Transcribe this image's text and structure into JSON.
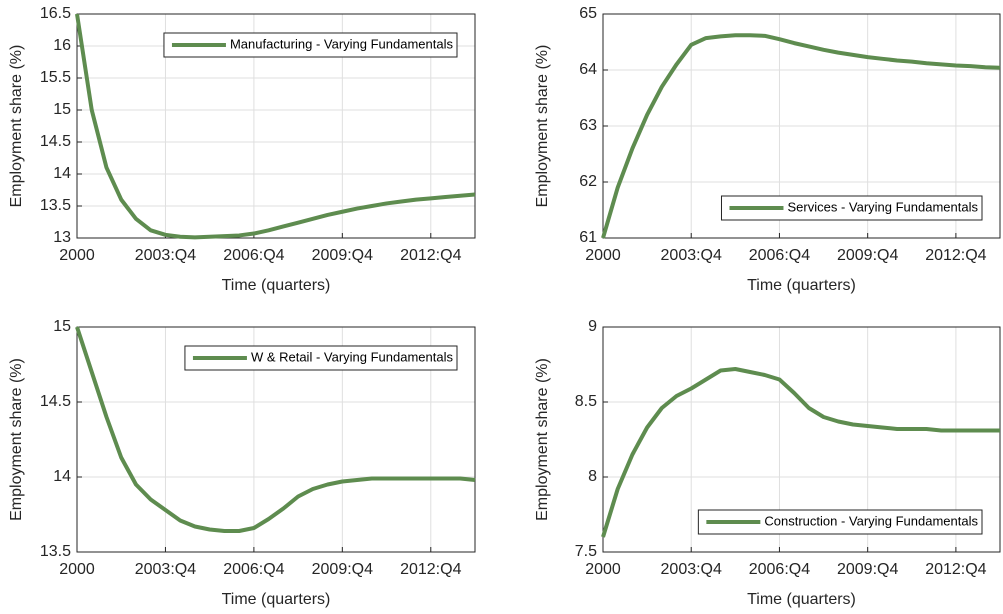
{
  "chart_data": [
    {
      "type": "line",
      "xlabel": "Time (quarters)",
      "ylabel": "Employment share (%)",
      "x": [
        1,
        3,
        5,
        7,
        9,
        11,
        13,
        15,
        17,
        19,
        21,
        23,
        25,
        27,
        29,
        31,
        33,
        35,
        37,
        39,
        41,
        43,
        45,
        47,
        49,
        51,
        53,
        55
      ],
      "series": [
        {
          "name": "Manufacturing - Varying Fundamentals",
          "color": "#5e8c4f",
          "values": [
            16.5,
            15.0,
            14.1,
            13.6,
            13.3,
            13.12,
            13.05,
            13.02,
            13.01,
            13.02,
            13.03,
            13.04,
            13.07,
            13.12,
            13.18,
            13.24,
            13.3,
            13.36,
            13.41,
            13.46,
            13.5,
            13.54,
            13.57,
            13.6,
            13.62,
            13.64,
            13.66,
            13.68
          ]
        }
      ],
      "xlim": [
        1,
        55
      ],
      "xticks": [
        {
          "value": 1,
          "label": "2000"
        },
        {
          "value": 13,
          "label": "2003:Q4"
        },
        {
          "value": 25,
          "label": "2006:Q4"
        },
        {
          "value": 37,
          "label": "2009:Q4"
        },
        {
          "value": 49,
          "label": "2012:Q4"
        }
      ],
      "ylim": [
        13,
        16.5
      ],
      "yticks": [
        13,
        13.5,
        14,
        14.5,
        15,
        15.5,
        16,
        16.5
      ],
      "grid": true,
      "legend_loc": "northeast"
    },
    {
      "type": "line",
      "xlabel": "Time (quarters)",
      "ylabel": "Employment share (%)",
      "x": [
        1,
        3,
        5,
        7,
        9,
        11,
        13,
        15,
        17,
        19,
        21,
        23,
        25,
        27,
        29,
        31,
        33,
        35,
        37,
        39,
        41,
        43,
        45,
        47,
        49,
        51,
        53,
        55
      ],
      "series": [
        {
          "name": "Services - Varying Fundamentals",
          "color": "#5e8c4f",
          "values": [
            61.0,
            61.9,
            62.6,
            63.2,
            63.7,
            64.1,
            64.45,
            64.57,
            64.6,
            64.62,
            64.62,
            64.61,
            64.55,
            64.48,
            64.42,
            64.36,
            64.31,
            64.27,
            64.23,
            64.2,
            64.17,
            64.15,
            64.12,
            64.1,
            64.08,
            64.07,
            64.05,
            64.04
          ]
        }
      ],
      "xlim": [
        1,
        55
      ],
      "xticks": [
        {
          "value": 1,
          "label": "2000"
        },
        {
          "value": 13,
          "label": "2003:Q4"
        },
        {
          "value": 25,
          "label": "2006:Q4"
        },
        {
          "value": 37,
          "label": "2009:Q4"
        },
        {
          "value": 49,
          "label": "2012:Q4"
        }
      ],
      "ylim": [
        61,
        65
      ],
      "yticks": [
        61,
        62,
        63,
        64,
        65
      ],
      "grid": true,
      "legend_loc": "southeast"
    },
    {
      "type": "line",
      "xlabel": "Time (quarters)",
      "ylabel": "Employment share (%)",
      "x": [
        1,
        3,
        5,
        7,
        9,
        11,
        13,
        15,
        17,
        19,
        21,
        23,
        25,
        27,
        29,
        31,
        33,
        35,
        37,
        39,
        41,
        43,
        45,
        47,
        49,
        51,
        53,
        55
      ],
      "series": [
        {
          "name": "W & Retail - Varying Fundamentals",
          "color": "#5e8c4f",
          "values": [
            15.0,
            14.7,
            14.4,
            14.13,
            13.95,
            13.85,
            13.78,
            13.71,
            13.67,
            13.65,
            13.64,
            13.64,
            13.66,
            13.72,
            13.79,
            13.87,
            13.92,
            13.95,
            13.97,
            13.98,
            13.99,
            13.99,
            13.99,
            13.99,
            13.99,
            13.99,
            13.99,
            13.98
          ]
        }
      ],
      "xlim": [
        1,
        55
      ],
      "xticks": [
        {
          "value": 1,
          "label": "2000"
        },
        {
          "value": 13,
          "label": "2003:Q4"
        },
        {
          "value": 25,
          "label": "2006:Q4"
        },
        {
          "value": 37,
          "label": "2009:Q4"
        },
        {
          "value": 49,
          "label": "2012:Q4"
        }
      ],
      "ylim": [
        13.5,
        15
      ],
      "yticks": [
        13.5,
        14,
        14.5,
        15
      ],
      "grid": true,
      "legend_loc": "northeast"
    },
    {
      "type": "line",
      "xlabel": "Time (quarters)",
      "ylabel": "Employment share (%)",
      "x": [
        1,
        3,
        5,
        7,
        9,
        11,
        13,
        15,
        17,
        19,
        21,
        23,
        25,
        27,
        29,
        31,
        33,
        35,
        37,
        39,
        41,
        43,
        45,
        47,
        49,
        51,
        53,
        55
      ],
      "series": [
        {
          "name": "Construction - Varying Fundamentals",
          "color": "#5e8c4f",
          "values": [
            7.6,
            7.92,
            8.15,
            8.33,
            8.46,
            8.54,
            8.59,
            8.65,
            8.71,
            8.72,
            8.7,
            8.68,
            8.65,
            8.56,
            8.46,
            8.4,
            8.37,
            8.35,
            8.34,
            8.33,
            8.32,
            8.32,
            8.32,
            8.31,
            8.31,
            8.31,
            8.31,
            8.31
          ]
        }
      ],
      "xlim": [
        1,
        55
      ],
      "xticks": [
        {
          "value": 1,
          "label": "2000"
        },
        {
          "value": 13,
          "label": "2003:Q4"
        },
        {
          "value": 25,
          "label": "2006:Q4"
        },
        {
          "value": 37,
          "label": "2009:Q4"
        },
        {
          "value": 49,
          "label": "2012:Q4"
        }
      ],
      "ylim": [
        7.5,
        9
      ],
      "yticks": [
        7.5,
        8,
        8.5,
        9
      ],
      "grid": true,
      "legend_loc": "southeast"
    }
  ]
}
